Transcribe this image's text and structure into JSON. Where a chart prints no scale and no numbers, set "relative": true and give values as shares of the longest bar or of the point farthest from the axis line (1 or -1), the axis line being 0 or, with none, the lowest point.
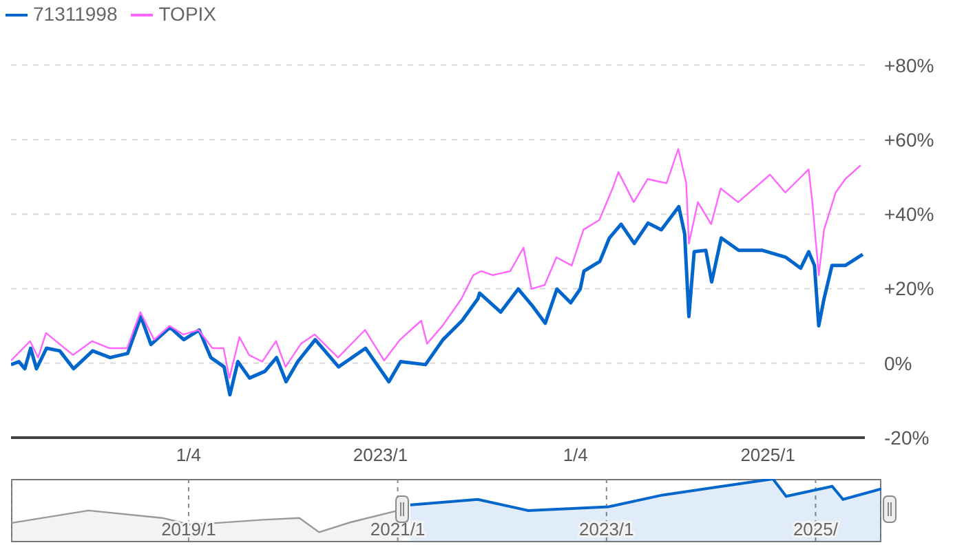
{
  "chart_data": [
    {
      "type": "line",
      "legend": "top left",
      "grid": "y",
      "xlim": [
        "2021-02-03",
        "2025-07-03"
      ],
      "xticks": [
        {
          "value": "2022-01-04",
          "label": "1/4"
        },
        {
          "value": "2023-01",
          "label": "2023/1"
        },
        {
          "value": "2024-01-04",
          "label": "1/4"
        },
        {
          "value": "2025-01",
          "label": "2025/1"
        }
      ],
      "ylim": [
        -20,
        80
      ],
      "yticks": [
        {
          "value": -20,
          "label": "-20%"
        },
        {
          "value": 0,
          "label": "0%"
        },
        {
          "value": 20,
          "label": "+20%"
        },
        {
          "value": 40,
          "label": "+40%"
        },
        {
          "value": 60,
          "label": "+60%"
        },
        {
          "value": 80,
          "label": "+80%"
        }
      ],
      "series": [
        {
          "name": "71311998",
          "color": "#0066cc",
          "x": [
            "2021-02-03",
            "2021-02-18",
            "2021-03-01",
            "2021-03-12",
            "2021-03-23",
            "2021-04-11",
            "2021-05-06",
            "2021-06-01",
            "2021-07-07",
            "2021-08-09",
            "2021-09-11",
            "2021-10-06",
            "2021-10-25",
            "2021-11-30",
            "2021-12-26",
            "2022-01-24",
            "2022-02-15",
            "2022-03-12",
            "2022-03-23",
            "2022-04-07",
            "2022-04-29",
            "2022-05-28",
            "2022-06-19",
            "2022-07-07",
            "2022-07-29",
            "2022-08-31",
            "2022-10-14",
            "2022-12-04",
            "2023-01-17",
            "2023-02-08",
            "2023-03-27",
            "2023-04-29",
            "2023-06-04",
            "2023-07-04",
            "2023-07-07",
            "2023-08-16",
            "2023-09-18",
            "2023-10-14",
            "2023-11-08",
            "2023-11-30",
            "2023-12-26",
            "2024-01-13",
            "2024-01-20",
            "2024-02-19",
            "2024-03-08",
            "2024-03-30",
            "2024-04-24",
            "2024-05-20",
            "2024-06-14",
            "2024-07-17",
            "2024-07-28",
            "2024-08-05",
            "2024-08-15",
            "2024-09-06",
            "2024-09-17",
            "2024-10-05",
            "2024-11-07",
            "2024-12-21",
            "2025-02-04",
            "2025-03-04",
            "2025-03-19",
            "2025-03-30",
            "2025-04-07",
            "2025-04-17",
            "2025-05-02",
            "2025-05-27",
            "2025-06-29"
          ],
          "values": [
            -0.4,
            0.4,
            -1.5,
            4,
            -1.5,
            4,
            3.3,
            -1.5,
            3.3,
            1.5,
            2.6,
            12.5,
            5,
            9.6,
            6.3,
            8.9,
            1.5,
            -1,
            -8.5,
            0.4,
            -4,
            -2.2,
            1.5,
            -5,
            0.4,
            6.3,
            -1,
            4,
            -5,
            0.4,
            -0.4,
            6.3,
            11.4,
            17.3,
            18.8,
            13.7,
            19.9,
            15.5,
            10.7,
            19.9,
            16.2,
            19.9,
            24.7,
            27.3,
            33.6,
            37.3,
            32.1,
            37.6,
            35.8,
            42,
            34.7,
            12.5,
            29.9,
            30.3,
            21.8,
            33.6,
            30.3,
            30.3,
            28.4,
            25.5,
            29.9,
            26.2,
            10,
            17.3,
            26.2,
            26.2,
            29.2
          ]
        },
        {
          "name": "TOPIX",
          "color": "#ff66ff",
          "x": [
            "2021-02-03",
            "2021-03-11",
            "2021-03-26",
            "2021-04-10",
            "2021-05-05",
            "2021-05-31",
            "2021-07-06",
            "2021-08-08",
            "2021-09-10",
            "2021-10-05",
            "2021-10-31",
            "2021-11-29",
            "2021-12-25",
            "2022-01-23",
            "2022-02-18",
            "2022-03-11",
            "2022-03-22",
            "2022-04-10",
            "2022-04-28",
            "2022-05-23",
            "2022-06-18",
            "2022-07-06",
            "2022-08-04",
            "2022-08-30",
            "2022-10-13",
            "2022-12-03",
            "2023-01-08",
            "2023-02-07",
            "2023-03-19",
            "2023-03-30",
            "2023-04-28",
            "2023-06-03",
            "2023-06-25",
            "2023-07-10",
            "2023-08-01",
            "2023-09-03",
            "2023-09-28",
            "2023-10-13",
            "2023-11-07",
            "2023-11-29",
            "2023-12-28",
            "2024-01-19",
            "2024-02-18",
            "2024-03-14",
            "2024-03-25",
            "2024-04-23",
            "2024-05-19",
            "2024-06-24",
            "2024-07-16",
            "2024-07-31",
            "2024-08-05",
            "2024-08-22",
            "2024-09-16",
            "2024-10-04",
            "2024-11-06",
            "2025-01-05",
            "2025-02-03",
            "2025-03-19",
            "2025-03-26",
            "2025-04-07",
            "2025-04-17",
            "2025-05-09",
            "2025-05-27",
            "2025-06-25"
          ],
          "values": [
            0.7,
            5.9,
            1.5,
            8.1,
            5.2,
            2.2,
            5.9,
            4,
            4,
            13.7,
            6.3,
            10,
            7.7,
            8.9,
            4,
            4,
            -4,
            7,
            2.2,
            0.4,
            5.9,
            -1,
            5.2,
            7.7,
            1.5,
            8.9,
            0.7,
            6.3,
            11.4,
            5.2,
            10,
            17.3,
            23.6,
            24.7,
            23.6,
            24.7,
            31,
            19.9,
            21,
            28.4,
            26.2,
            35.8,
            38.4,
            46.9,
            51.3,
            43.2,
            49.4,
            48.3,
            57.5,
            48.3,
            32.1,
            43.2,
            37.3,
            46.9,
            43.2,
            50.6,
            45.8,
            52,
            43.2,
            23.6,
            35.8,
            45.8,
            49.4,
            53.1
          ]
        }
      ]
    },
    {
      "type": "area",
      "relative": true,
      "grid": "x",
      "tick_labels": "x",
      "xlim": [
        "2017-04-20",
        "2025-08-19"
      ],
      "xticks": [
        {
          "value": "2019-01",
          "label": "2019/1"
        },
        {
          "value": "2021-01",
          "label": "2021/1"
        },
        {
          "value": "2023-01",
          "label": "2023/1"
        },
        {
          "value": "2025-01",
          "label": "2025/"
        }
      ],
      "series": [
        {
          "color": "#999999",
          "x": [
            "2017-04-23",
            "2018-01-16",
            "2018-10-01",
            "2019-01-08",
            "2019-09-17",
            "2020-01-23",
            "2020-04-01",
            "2020-07-20",
            "2021-01-19"
          ],
          "values": [
            0.29,
            0.49,
            0.37,
            0.26,
            0.34,
            0.37,
            0.14,
            0.3,
            0.51
          ]
        },
        {
          "color": "#0066cc",
          "x": [
            "2021-02-14",
            "2021-10-08",
            "2022-04-02",
            "2023-01-08",
            "2023-07-16",
            "2024-04-23",
            "2024-08-05",
            "2024-09-20",
            "2025-02-28",
            "2025-04-07",
            "2025-08-19"
          ],
          "values": [
            0.58,
            0.67,
            0.49,
            0.55,
            0.74,
            0.93,
            1,
            0.72,
            0.88,
            0.67,
            0.84
          ]
        }
      ]
    }
  ]
}
